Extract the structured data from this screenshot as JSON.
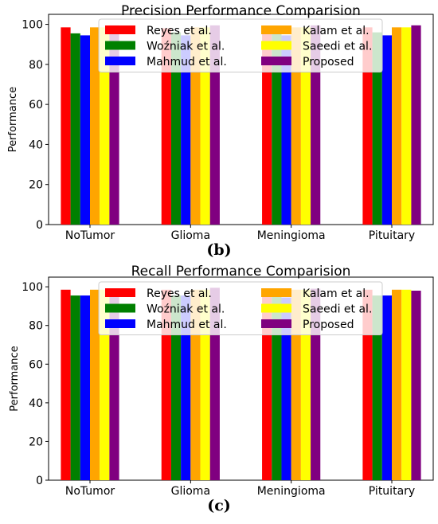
{
  "chart_data": [
    {
      "type": "bar",
      "title": "Precision Performance Comparision",
      "xlabel": "",
      "ylabel": "Performance",
      "ylim": [
        0,
        105
      ],
      "yticks": [
        0,
        20,
        40,
        60,
        80,
        100
      ],
      "categories": [
        "NoTumor",
        "Glioma",
        "Meningioma",
        "Pituitary"
      ],
      "legend_position": "top-center",
      "series": [
        {
          "name": "Reyes et al.",
          "color": "#ff0000",
          "values": [
            98.5,
            98.0,
            98.0,
            98.5
          ]
        },
        {
          "name": "Woźniak et al.",
          "color": "#008000",
          "values": [
            95.5,
            96.0,
            96.0,
            96.0
          ]
        },
        {
          "name": "Mahmud et al.",
          "color": "#0000ff",
          "values": [
            94.5,
            94.5,
            94.5,
            94.5
          ]
        },
        {
          "name": "Kalam et al.",
          "color": "#ffa500",
          "values": [
            98.5,
            98.5,
            98.5,
            98.5
          ]
        },
        {
          "name": "Saeedi et al.",
          "color": "#ffff00",
          "values": [
            98.5,
            98.5,
            98.5,
            98.5
          ]
        },
        {
          "name": "Proposed",
          "color": "#800080",
          "values": [
            99.5,
            99.5,
            99.5,
            99.5
          ]
        }
      ]
    },
    {
      "type": "bar",
      "title": "Recall Performance Comparision",
      "xlabel": "",
      "ylabel": "Performance",
      "ylim": [
        0,
        105
      ],
      "yticks": [
        0,
        20,
        40,
        60,
        80,
        100
      ],
      "categories": [
        "NoTumor",
        "Glioma",
        "Meningioma",
        "Pituitary"
      ],
      "legend_position": "top-center",
      "series": [
        {
          "name": "Reyes et al.",
          "color": "#ff0000",
          "values": [
            98.5,
            98.5,
            98.5,
            98.5
          ]
        },
        {
          "name": "Woźniak et al.",
          "color": "#008000",
          "values": [
            95.5,
            95.5,
            95.5,
            95.5
          ]
        },
        {
          "name": "Mahmud et al.",
          "color": "#0000ff",
          "values": [
            95.5,
            95.5,
            94.5,
            95.5
          ]
        },
        {
          "name": "Kalam et al.",
          "color": "#ffa500",
          "values": [
            98.5,
            98.5,
            98.5,
            98.5
          ]
        },
        {
          "name": "Saeedi et al.",
          "color": "#ffff00",
          "values": [
            98.5,
            98.5,
            98.5,
            98.5
          ]
        },
        {
          "name": "Proposed",
          "color": "#800080",
          "values": [
            98.0,
            99.5,
            99.0,
            98.0
          ]
        }
      ]
    }
  ],
  "panel_labels": [
    "(b)",
    "(c)"
  ]
}
